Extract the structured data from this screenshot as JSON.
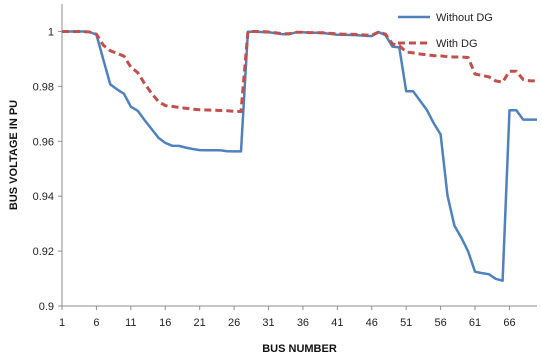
{
  "chart_data": {
    "type": "line",
    "title": "",
    "xlabel": "BUS NUMBER",
    "ylabel": "BUS VOLTAGE IN PU",
    "xlim": [
      1,
      70
    ],
    "ylim": [
      0.9,
      1.01
    ],
    "xticks": [
      1,
      6,
      11,
      16,
      21,
      26,
      31,
      36,
      41,
      46,
      51,
      56,
      61,
      66
    ],
    "yticks": [
      0.9,
      0.92,
      0.94,
      0.96,
      0.98,
      1
    ],
    "ytick_labels": [
      "0.9",
      "0.92",
      "0.94",
      "0.96",
      "0.98",
      "1"
    ],
    "grid": false,
    "legend_position": "top-right",
    "x": [
      1,
      2,
      3,
      4,
      5,
      6,
      7,
      8,
      9,
      10,
      11,
      12,
      13,
      14,
      15,
      16,
      17,
      18,
      19,
      20,
      21,
      22,
      23,
      24,
      25,
      26,
      27,
      28,
      29,
      30,
      31,
      32,
      33,
      34,
      35,
      36,
      37,
      38,
      39,
      40,
      41,
      42,
      43,
      44,
      45,
      46,
      47,
      48,
      49,
      50,
      51,
      52,
      53,
      54,
      55,
      56,
      57,
      58,
      59,
      60,
      61,
      62,
      63,
      64,
      65,
      66,
      67,
      68,
      69,
      70
    ],
    "series": [
      {
        "name": "Without DG",
        "color": "#4f81bd",
        "style": "solid",
        "values": [
          1.0,
          1.0,
          1.0,
          1.0,
          0.9998,
          0.9989,
          0.9898,
          0.9808,
          0.9789,
          0.9773,
          0.9726,
          0.9711,
          0.9677,
          0.9645,
          0.9613,
          0.9594,
          0.9584,
          0.9583,
          0.9577,
          0.9572,
          0.9568,
          0.9567,
          0.9567,
          0.9567,
          0.9564,
          0.9563,
          0.9563,
          0.9999,
          0.9999,
          0.9998,
          0.9997,
          0.9994,
          0.999,
          0.999,
          0.9997,
          0.9997,
          0.9995,
          0.9995,
          0.9994,
          0.9991,
          0.9988,
          0.9988,
          0.9987,
          0.9986,
          0.9984,
          0.9983,
          0.9998,
          0.9986,
          0.9945,
          0.9942,
          0.9782,
          0.9782,
          0.9748,
          0.9714,
          0.9666,
          0.9625,
          0.9402,
          0.9293,
          0.9249,
          0.9198,
          0.9125,
          0.912,
          0.9116,
          0.9099,
          0.9092,
          0.9713,
          0.9713,
          0.9679,
          0.9679,
          0.9679
        ]
      },
      {
        "name": "With DG",
        "color": "#c0504d",
        "style": "dashed",
        "values": [
          1.0,
          1.0,
          1.0,
          1.0,
          0.9998,
          0.999,
          0.995,
          0.993,
          0.992,
          0.991,
          0.987,
          0.985,
          0.981,
          0.9775,
          0.9745,
          0.973,
          0.9727,
          0.9723,
          0.972,
          0.9717,
          0.9715,
          0.9714,
          0.9713,
          0.9712,
          0.9711,
          0.9709,
          0.9708,
          1.0,
          1.0,
          1.0,
          0.9998,
          0.9995,
          0.9992,
          0.9992,
          0.9997,
          0.9997,
          0.9996,
          0.9996,
          0.9995,
          0.9993,
          0.9991,
          0.999,
          0.999,
          0.9989,
          0.9987,
          0.9986,
          0.9998,
          0.999,
          0.9955,
          0.9948,
          0.9925,
          0.9922,
          0.9918,
          0.9915,
          0.9912,
          0.9911,
          0.9908,
          0.9907,
          0.9907,
          0.9905,
          0.9845,
          0.984,
          0.9835,
          0.982,
          0.9815,
          0.9855,
          0.9855,
          0.9825,
          0.982,
          0.982
        ]
      }
    ]
  }
}
